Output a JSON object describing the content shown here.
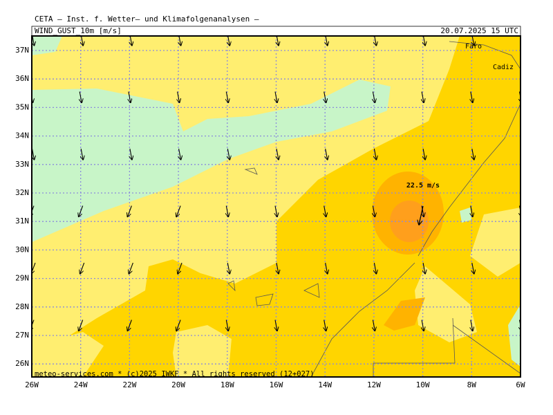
{
  "header": {
    "title": "CETA — Inst. f. Wetter— und Klimafolgenanalysen —",
    "field": "WIND_GUST_10m [m/s]",
    "valid": "20.07.2025 15 UTC"
  },
  "axes": {
    "longitudes": [
      "26W",
      "24W",
      "22W",
      "20W",
      "18W",
      "16W",
      "14W",
      "12W",
      "10W",
      "8W",
      "6W"
    ],
    "latitudes": [
      "37N",
      "36N",
      "35N",
      "34N",
      "33N",
      "32N",
      "31N",
      "30N",
      "29N",
      "28N",
      "27N",
      "26N"
    ]
  },
  "annotation": "22.5 m/s",
  "places": [
    "Faro",
    "Cadiz"
  ],
  "footer": "meteo-services.com * (c)2025 IWKF * All rights reserved (12+027)"
}
